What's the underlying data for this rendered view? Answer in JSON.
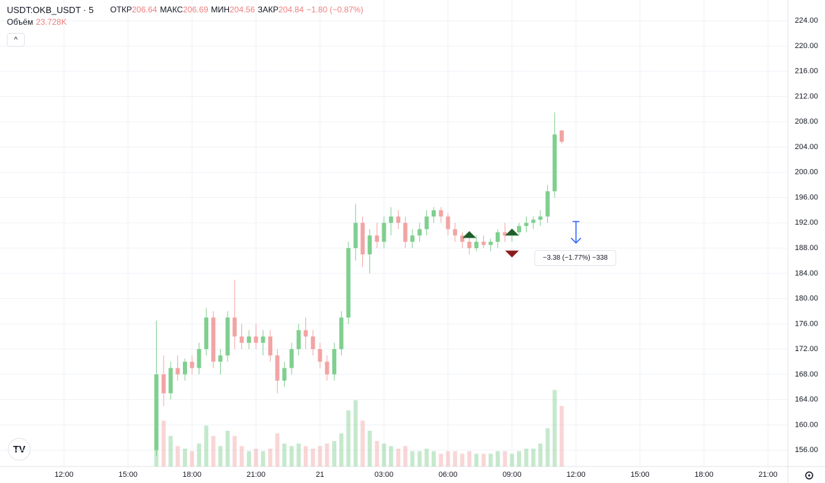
{
  "chart_data": {
    "type": "candlestick",
    "symbol": "USDT:OKB_USDT · 5",
    "open_label": "ОТКР",
    "high_label": "МАКС",
    "low_label": "МИН",
    "close_label": "ЗАКР",
    "change_label": "−1.80 (−0.87%)",
    "volume_title": "Объём",
    "last_volume_label": "23.728K",
    "x": [
      16.33,
      16.67,
      17,
      17.33,
      17.67,
      18,
      18.33,
      18.67,
      19,
      19.33,
      19.67,
      20,
      20.33,
      20.67,
      21,
      21.33,
      21.67,
      22,
      22.33,
      22.67,
      23,
      23.33,
      23.67,
      24,
      24.33,
      24.67,
      25,
      25.33,
      25.67,
      26,
      26.33,
      26.67,
      27,
      27.33,
      27.67,
      28,
      28.33,
      28.67,
      29,
      29.33,
      29.67,
      30,
      30.33,
      30.67,
      31,
      31.33,
      31.67,
      32,
      32.33,
      32.67,
      33,
      33.33,
      33.67,
      34,
      34.33,
      34.67,
      35,
      35.33
    ],
    "open": [
      156,
      168,
      165,
      169,
      168,
      170,
      169,
      172,
      177,
      170,
      171,
      177,
      174,
      173,
      174,
      173,
      174,
      171,
      167,
      169,
      172,
      175,
      174,
      172,
      170,
      168,
      172,
      177,
      188,
      192,
      187,
      190,
      189,
      192,
      193,
      192,
      189,
      190,
      191,
      193,
      194,
      193,
      191,
      190,
      189,
      188,
      189,
      188.5,
      189,
      190.5,
      190,
      190.5,
      191.5,
      192,
      192.5,
      193,
      197,
      206.64
    ],
    "high": [
      176.5,
      171,
      170,
      171,
      170.5,
      171,
      173,
      178.5,
      178,
      172,
      178,
      183,
      176,
      175,
      176,
      175,
      175,
      172,
      170,
      173,
      176,
      177,
      175,
      173,
      171,
      173,
      178,
      189,
      195,
      193,
      191,
      192,
      193,
      194.5,
      194,
      193,
      191,
      192,
      194,
      194.5,
      194.5,
      193.5,
      192,
      190.5,
      190,
      190,
      190,
      189.5,
      191,
      192,
      191,
      192,
      193,
      193,
      194,
      198,
      209.5,
      206.69
    ],
    "low": [
      155,
      163,
      164,
      167,
      167,
      168,
      168,
      171,
      169,
      168,
      170,
      172,
      172,
      172,
      172,
      171,
      170,
      165,
      166,
      168,
      171,
      172,
      171,
      169,
      167,
      167,
      171,
      176,
      186,
      185,
      184,
      188,
      188,
      190,
      191,
      188,
      188,
      189,
      190,
      192,
      192,
      190,
      189,
      188,
      187,
      187.5,
      188,
      187.5,
      188,
      189,
      189,
      190,
      190.5,
      191,
      191.5,
      192,
      196,
      204.56
    ],
    "close": [
      168,
      165,
      169,
      168,
      170,
      169,
      172,
      177,
      170,
      171,
      177,
      174,
      173,
      174,
      173,
      174,
      171,
      167,
      169,
      172,
      175,
      174,
      172,
      170,
      168,
      172,
      177,
      188,
      192,
      187,
      190,
      189,
      192,
      193,
      192,
      189,
      190,
      191,
      193,
      194,
      193,
      191,
      190,
      189,
      188,
      189,
      188.5,
      189,
      190.5,
      190,
      190.5,
      191.5,
      192,
      192.5,
      193,
      197,
      206,
      204.84
    ],
    "volume": [
      35,
      18,
      12,
      8,
      7,
      6,
      9,
      16,
      12,
      8,
      14,
      12,
      8,
      6,
      7,
      6,
      7,
      13,
      9,
      8,
      9,
      8,
      7,
      8,
      9,
      10,
      13,
      22,
      26,
      18,
      14,
      10,
      9,
      8,
      7,
      8,
      6,
      6,
      7,
      6,
      5,
      6,
      6,
      5,
      6,
      5,
      5,
      5,
      6,
      6,
      5,
      6,
      7,
      7,
      9,
      15,
      30,
      23.728
    ],
    "up_color": "#7fcf8e",
    "down_color": "#f2a4a4",
    "xlim": [
      9,
      45.9
    ],
    "xticks": [
      {
        "value": 12,
        "label": "12:00"
      },
      {
        "value": 15,
        "label": "15:00"
      },
      {
        "value": 18,
        "label": "18:00"
      },
      {
        "value": 21,
        "label": "21:00"
      },
      {
        "value": 24,
        "label": "21"
      },
      {
        "value": 27,
        "label": "03:00"
      },
      {
        "value": 30,
        "label": "06:00"
      },
      {
        "value": 33,
        "label": "09:00"
      },
      {
        "value": 36,
        "label": "12:00"
      },
      {
        "value": 39,
        "label": "15:00"
      },
      {
        "value": 42,
        "label": "18:00"
      },
      {
        "value": 45,
        "label": "21:00"
      }
    ],
    "ylim": [
      153.4,
      227.3
    ],
    "yticks": [
      {
        "value": 156,
        "label": "156.00"
      },
      {
        "value": 160,
        "label": "160.00"
      },
      {
        "value": 164,
        "label": "164.00"
      },
      {
        "value": 168,
        "label": "168.00"
      },
      {
        "value": 172,
        "label": "172.00"
      },
      {
        "value": 176,
        "label": "176.00"
      },
      {
        "value": 180,
        "label": "180.00"
      },
      {
        "value": 184,
        "label": "184.00"
      },
      {
        "value": 188,
        "label": "188.00"
      },
      {
        "value": 192,
        "label": "192.00"
      },
      {
        "value": 196,
        "label": "196.00"
      },
      {
        "value": 200,
        "label": "200.00"
      },
      {
        "value": 204,
        "label": "204.00"
      },
      {
        "value": 208,
        "label": "208.00"
      },
      {
        "value": 212,
        "label": "212.00"
      },
      {
        "value": 216,
        "label": "216.00"
      },
      {
        "value": 220,
        "label": "220.00"
      },
      {
        "value": 224,
        "label": "224.00"
      }
    ],
    "grid": true,
    "markers": [
      {
        "x": 31.0,
        "y": 189.6,
        "dir": "up",
        "color": "#1e5e2a"
      },
      {
        "x": 33.0,
        "y": 190.0,
        "dir": "up",
        "color": "#1e5e2a"
      },
      {
        "x": 33.0,
        "y": 187.6,
        "dir": "down",
        "color": "#8b1c1c"
      }
    ],
    "measure": {
      "x": 36,
      "from": 192.2,
      "to": 188.82,
      "color": "#2962ff",
      "label": "−3.38 (−1.77%) −338"
    }
  }
}
